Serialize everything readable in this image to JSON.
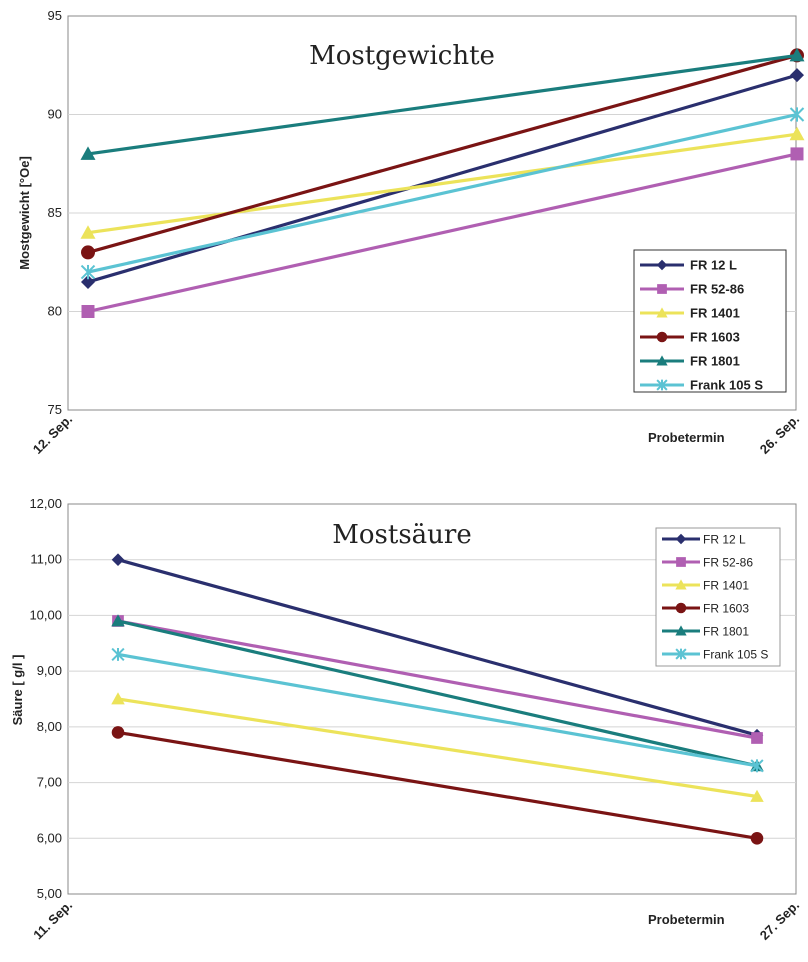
{
  "colors": {
    "series": [
      "#2a2f6e",
      "#b05fb2",
      "#ece35a",
      "#7a1414",
      "#1a7d7d",
      "#5bc3d3"
    ],
    "grid": "#d4d4d4",
    "axis": "#888888"
  },
  "chart_data": [
    {
      "type": "line",
      "title": "Mostgewichte",
      "xlabel": "Probetermin",
      "ylabel": "Mostgewicht  [°Oe]",
      "categories": [
        "12. Sep.",
        "26. Sep."
      ],
      "ylim": [
        75,
        95
      ],
      "yticks": [
        "75",
        "80",
        "85",
        "90",
        "95"
      ],
      "yticks_values": [
        75,
        80,
        85,
        90,
        95
      ],
      "grid": true,
      "legend": "bottom-right",
      "series": [
        {
          "name": "FR 12 L",
          "values": [
            81.5,
            92
          ],
          "marker": "diamond"
        },
        {
          "name": "FR 52-86",
          "values": [
            80,
            88
          ],
          "marker": "square"
        },
        {
          "name": "FR 1401",
          "values": [
            84,
            89
          ],
          "marker": "triangle"
        },
        {
          "name": "FR 1603",
          "values": [
            83,
            93
          ],
          "marker": "circle"
        },
        {
          "name": "FR 1801",
          "values": [
            88,
            93
          ],
          "marker": "triangle"
        },
        {
          "name": "Frank 105 S",
          "values": [
            82,
            90
          ],
          "marker": "star"
        }
      ]
    },
    {
      "type": "line",
      "title": "Mostsäure",
      "xlabel": "Probetermin",
      "ylabel": "Säure [ g/l ]",
      "categories": [
        "11. Sep.",
        "27. Sep."
      ],
      "ylim": [
        5,
        12
      ],
      "yticks": [
        "5,00",
        "6,00",
        "7,00",
        "8,00",
        "9,00",
        "10,00",
        "11,00",
        "12,00"
      ],
      "yticks_values": [
        5,
        6,
        7,
        8,
        9,
        10,
        11,
        12
      ],
      "grid": true,
      "legend": "top-right",
      "series": [
        {
          "name": "FR 12 L",
          "values": [
            11.0,
            7.85
          ],
          "marker": "diamond"
        },
        {
          "name": "FR 52-86",
          "values": [
            9.9,
            7.8
          ],
          "marker": "square"
        },
        {
          "name": "FR 1401",
          "values": [
            8.5,
            6.75
          ],
          "marker": "triangle"
        },
        {
          "name": "FR 1603",
          "values": [
            7.9,
            6.0
          ],
          "marker": "circle"
        },
        {
          "name": "FR 1801",
          "values": [
            9.9,
            7.3
          ],
          "marker": "triangle"
        },
        {
          "name": "Frank 105 S",
          "values": [
            9.3,
            7.3
          ],
          "marker": "star"
        }
      ]
    }
  ]
}
